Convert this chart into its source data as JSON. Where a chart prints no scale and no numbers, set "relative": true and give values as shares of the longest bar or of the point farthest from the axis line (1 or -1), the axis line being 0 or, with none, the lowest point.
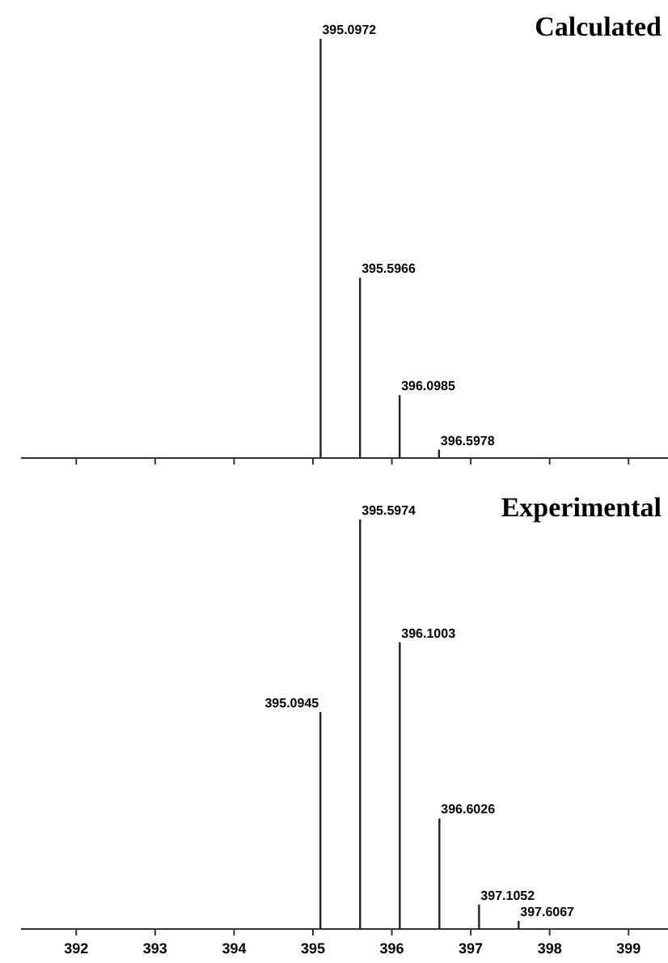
{
  "chart_data": [
    {
      "type": "bar",
      "title": "Calculated",
      "relative": true,
      "x": [
        395.0972,
        395.5966,
        396.0985,
        396.5978
      ],
      "values": [
        1,
        0.43,
        0.15,
        0.02
      ],
      "color": "#222222",
      "xlim": [
        391.3,
        399.5
      ],
      "xticks": [
        392,
        393,
        394,
        395,
        396,
        397,
        398,
        399
      ],
      "tick_labels": false,
      "annotations": [
        {
          "text": "395.0972",
          "x": 395.0972,
          "y": 1
        },
        {
          "text": "395.5966",
          "x": 395.5966,
          "y": 0.43
        },
        {
          "text": "396.0985",
          "x": 396.0985,
          "y": 0.15
        },
        {
          "text": "396.5978",
          "x": 396.5978,
          "y": 0.02
        }
      ]
    },
    {
      "type": "bar",
      "title": "Experimental",
      "relative": true,
      "x": [
        395.0945,
        395.5974,
        396.1003,
        396.6026,
        397.1052,
        397.6067
      ],
      "values": [
        0.53,
        1,
        0.7,
        0.27,
        0.06,
        0.02
      ],
      "color": "#222222",
      "xlim": [
        391.3,
        399.5
      ],
      "xticks": [
        392,
        393,
        394,
        395,
        396,
        397,
        398,
        399
      ],
      "annotations": [
        {
          "text": "395.0945",
          "x": 395.0945,
          "y": 0.53
        },
        {
          "text": "395.5974",
          "x": 395.5974,
          "y": 1
        },
        {
          "text": "396.1003",
          "x": 396.1003,
          "y": 0.7
        },
        {
          "text": "396.6026",
          "x": 396.6026,
          "y": 0.27
        },
        {
          "text": "397.1052",
          "x": 397.1052,
          "y": 0.06
        },
        {
          "text": "397.6067",
          "x": 397.6067,
          "y": 0.02
        }
      ]
    }
  ]
}
